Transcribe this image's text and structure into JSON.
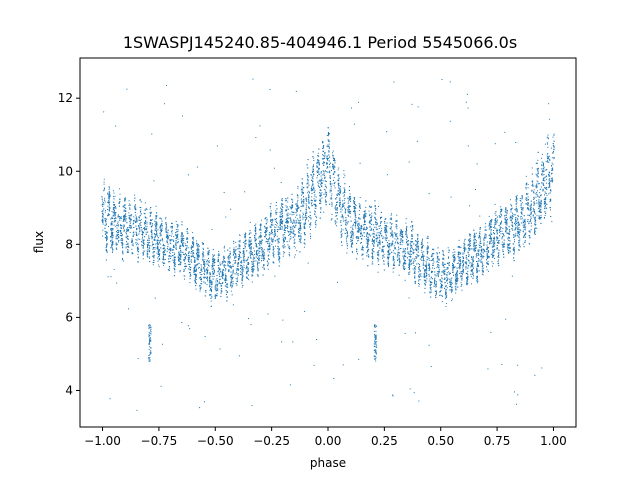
{
  "chart_data": {
    "type": "scatter",
    "title": "1SWASPJ145240.85-404946.1 Period 5545066.0s",
    "xlabel": "phase",
    "ylabel": "flux",
    "xlim": [
      -1.1,
      1.1
    ],
    "ylim": [
      3.0,
      13.1
    ],
    "x_ticks": [
      -1.0,
      -0.75,
      -0.5,
      -0.25,
      0.0,
      0.25,
      0.5,
      0.75,
      1.0
    ],
    "x_tick_labels": [
      "−1.00",
      "−0.75",
      "−0.50",
      "−0.25",
      "0.00",
      "0.25",
      "0.50",
      "0.75",
      "1.00"
    ],
    "y_ticks": [
      4,
      6,
      8,
      10,
      12
    ],
    "y_tick_labels": [
      "4",
      "6",
      "8",
      "10",
      "12"
    ],
    "marker_color": "#1f77b4",
    "grid": false,
    "legend": "none",
    "series": [
      {
        "profile": {
          "x": [
            -1.0,
            -0.95,
            -0.9,
            -0.85,
            -0.8,
            -0.75,
            -0.7,
            -0.65,
            -0.6,
            -0.55,
            -0.5,
            -0.45,
            -0.4,
            -0.35,
            -0.3,
            -0.25,
            -0.2,
            -0.15,
            -0.1,
            -0.05,
            0.0,
            0.05,
            0.1,
            0.15,
            0.2,
            0.25,
            0.3,
            0.35,
            0.4,
            0.45,
            0.5,
            0.55,
            0.6,
            0.65,
            0.7,
            0.75,
            0.8,
            0.85,
            0.9,
            0.95,
            1.0
          ],
          "y": [
            8.8,
            8.6,
            8.5,
            8.4,
            8.3,
            8.1,
            8.0,
            7.9,
            7.6,
            7.3,
            7.1,
            7.2,
            7.5,
            7.7,
            7.9,
            8.3,
            8.4,
            8.6,
            9.0,
            9.6,
            10.2,
            9.1,
            8.6,
            8.4,
            8.3,
            8.1,
            8.0,
            7.9,
            7.6,
            7.3,
            7.1,
            7.2,
            7.5,
            7.7,
            7.9,
            8.3,
            8.4,
            8.6,
            9.0,
            9.6,
            10.0
          ],
          "spread": [
            1.1,
            1.0,
            0.9,
            0.9,
            0.9,
            0.8,
            0.8,
            0.8,
            0.8,
            0.8,
            0.8,
            0.8,
            0.8,
            0.8,
            0.8,
            0.9,
            0.9,
            1.0,
            1.1,
            1.2,
            1.2,
            1.1,
            1.0,
            0.9,
            0.9,
            0.8,
            0.8,
            0.8,
            0.8,
            0.8,
            0.8,
            0.8,
            0.8,
            0.8,
            0.8,
            0.9,
            0.9,
            1.0,
            1.1,
            1.2,
            1.2
          ]
        },
        "dip_clusters": [
          {
            "x": -0.79,
            "y_range": [
              4.8,
              5.8
            ]
          },
          {
            "x": 0.21,
            "y_range": [
              4.8,
              5.8
            ]
          }
        ],
        "outlier_y_range": [
          3.4,
          12.6
        ]
      }
    ]
  }
}
